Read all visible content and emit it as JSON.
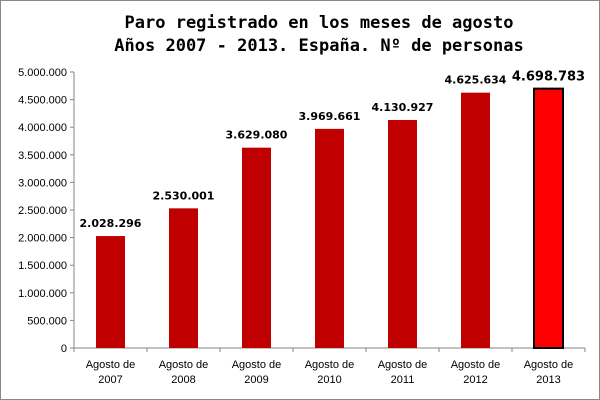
{
  "chart_data": {
    "type": "bar",
    "title_lines": [
      "Paro registrado en los meses de agosto",
      "Años 2007 - 2013. España. Nº de personas"
    ],
    "categories": [
      [
        "Agosto de",
        "2007"
      ],
      [
        "Agosto de",
        "2008"
      ],
      [
        "Agosto de",
        "2009"
      ],
      [
        "Agosto de",
        "2010"
      ],
      [
        "Agosto de",
        "2011"
      ],
      [
        "Agosto de",
        "2012"
      ],
      [
        "Agosto de",
        "2013"
      ]
    ],
    "values": [
      2028296,
      2530001,
      3629080,
      3969661,
      4130927,
      4625634,
      4698783
    ],
    "data_labels": [
      "2.028.296",
      "2.530.001",
      "3.629.080",
      "3.969.661",
      "4.130.927",
      "4.625.634",
      "4.698.783"
    ],
    "y_ticks": [
      0,
      500000,
      1000000,
      1500000,
      2000000,
      2500000,
      3000000,
      3500000,
      4000000,
      4500000,
      5000000
    ],
    "y_tick_labels": [
      "0",
      "500.000",
      "1.000.000",
      "1.500.000",
      "2.000.000",
      "2.500.000",
      "3.000.000",
      "3.500.000",
      "4.000.000",
      "4.500.000",
      "5.000.000"
    ],
    "ylim": [
      0,
      5000000
    ],
    "grid": false,
    "highlight_index": 6,
    "colors": {
      "bar": "#c00000",
      "highlight_bar": "#ff0000",
      "highlight_border": "#000000",
      "axis": "#868686"
    }
  }
}
